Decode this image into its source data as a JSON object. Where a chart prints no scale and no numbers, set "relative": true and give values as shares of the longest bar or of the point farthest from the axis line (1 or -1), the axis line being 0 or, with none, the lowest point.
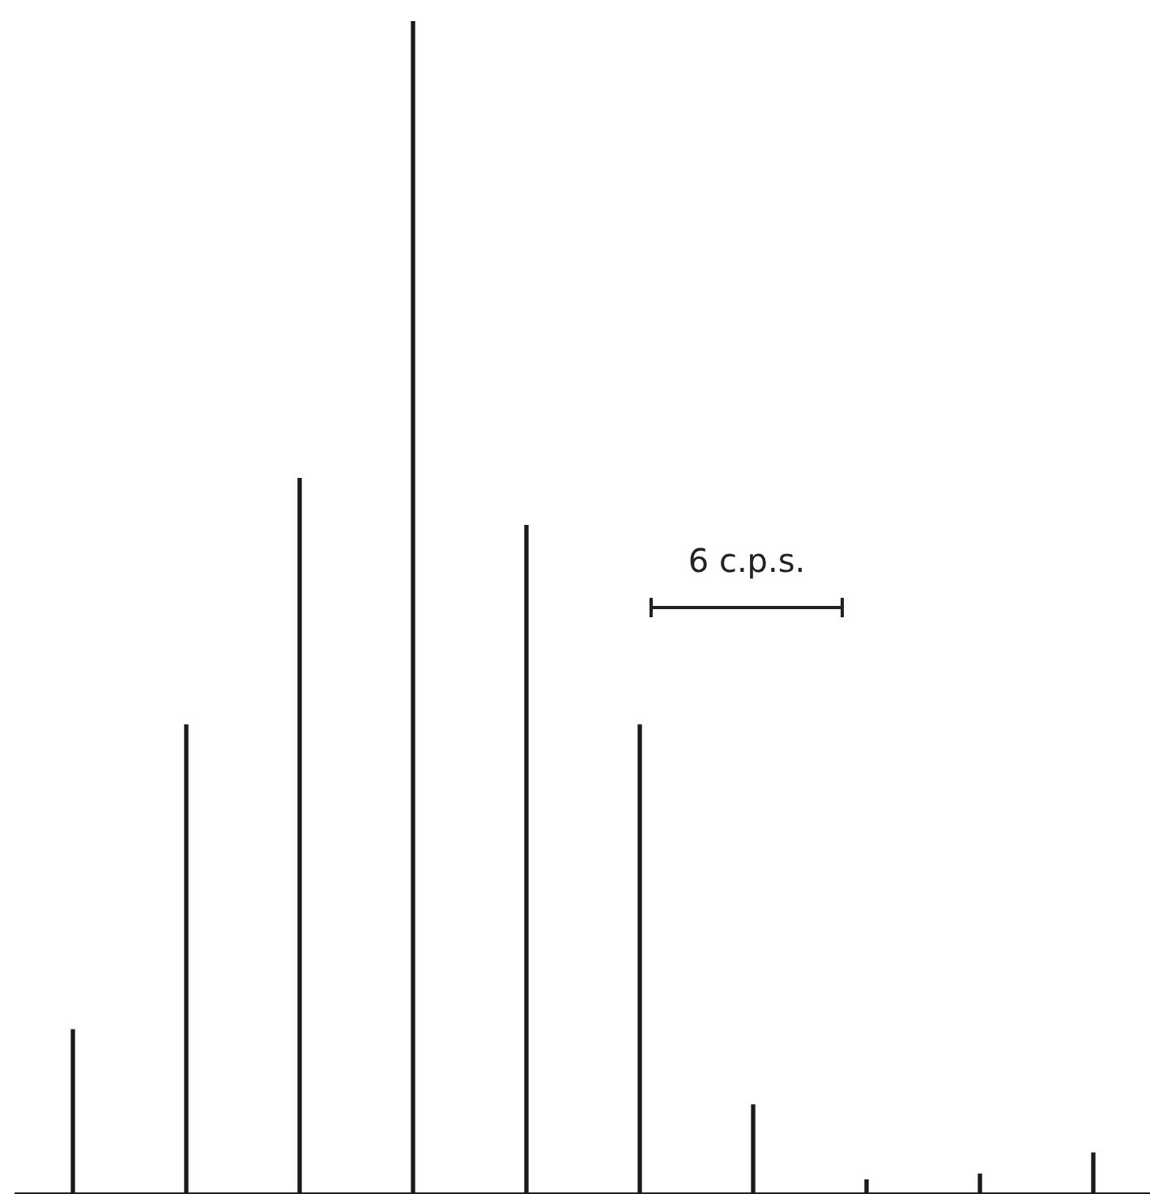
{
  "chart_data": {
    "type": "bar",
    "relative": true,
    "tick_labels": false,
    "grid": false,
    "legend": false,
    "categories": [
      null,
      null,
      null,
      null,
      null,
      null,
      null,
      null,
      null,
      null
    ],
    "series": [
      {
        "color": "#1a1a1a",
        "values": [
          0.14,
          0.4,
          0.61,
          1,
          0.57,
          0.4,
          0.076,
          0.012,
          0.017,
          0.035
        ]
      }
    ],
    "annotations": [
      "6 c.p.s."
    ]
  }
}
